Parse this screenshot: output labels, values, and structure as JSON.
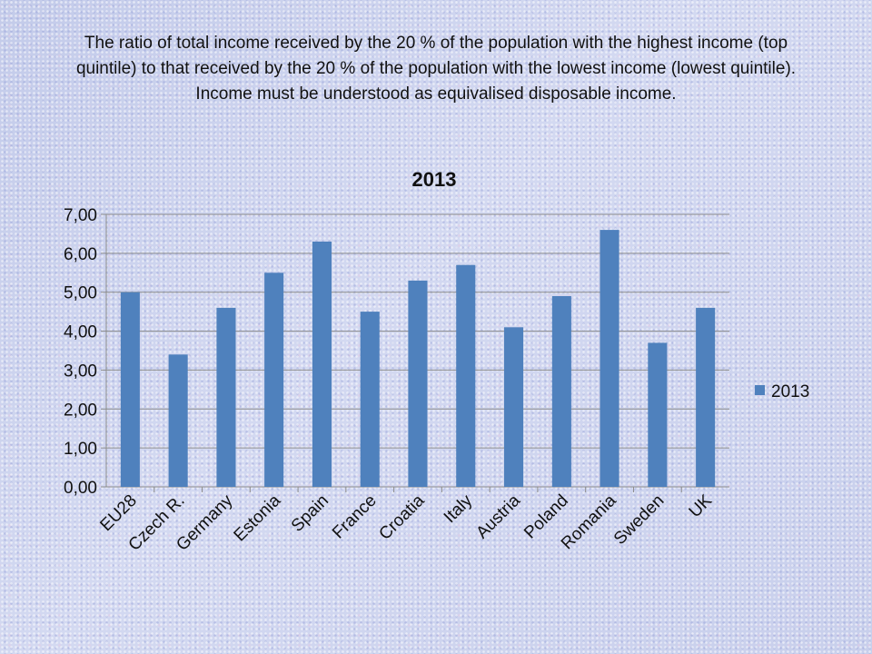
{
  "slide": {
    "title": "The ratio of total income received by the 20 % of the population with the highest income (top quintile) to that received by the 20 % of the population with the lowest income (lowest quintile). Income must be understood as equivalised disposable income."
  },
  "chart_data": {
    "type": "bar",
    "title": "2013",
    "xlabel": "",
    "ylabel": "",
    "categories": [
      "EU28",
      "Czech R.",
      "Germany",
      "Estonia",
      "Spain",
      "France",
      "Croatia",
      "Italy",
      "Austria",
      "Poland",
      "Romania",
      "Sweden",
      "UK"
    ],
    "series": [
      {
        "name": "2013",
        "values": [
          5.0,
          3.4,
          4.6,
          5.5,
          6.3,
          4.5,
          5.3,
          5.7,
          4.1,
          4.9,
          6.6,
          3.7,
          4.6
        ],
        "color": "#4f81bd"
      }
    ],
    "ylim": [
      0,
      7
    ],
    "yticks": [
      "0,00",
      "1,00",
      "2,00",
      "3,00",
      "4,00",
      "5,00",
      "6,00",
      "7,00"
    ],
    "grid": true,
    "legend_position": "right"
  }
}
